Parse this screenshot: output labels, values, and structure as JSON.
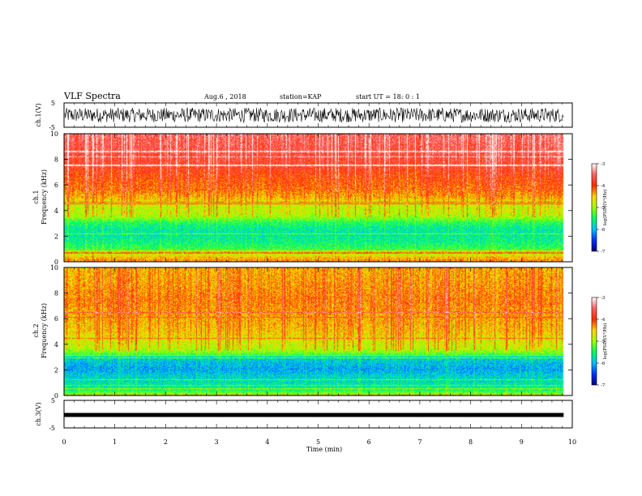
{
  "header": {
    "title": "VLF Spectra",
    "date": "Aug.6 , 2018",
    "station": "station=KAP",
    "start": "start UT = 18: 0 : 1"
  },
  "colorbar": {
    "label": "log(PSD)(V²/Hz)",
    "ticks": [
      "-3",
      "-4",
      "-5",
      "-6",
      "-7"
    ],
    "colors": [
      "#ffffff",
      "#ff6060",
      "#ff2a00",
      "#ffd400",
      "#a0ff00",
      "#00ff60",
      "#00c0ff",
      "#0030ff",
      "#000080"
    ]
  },
  "chart_data": [
    {
      "type": "line",
      "name": "ch1-waveform",
      "ylabel": "ch.1(V)",
      "ylim": [
        -5,
        5
      ],
      "yticks": [
        "5",
        "-5"
      ],
      "xlim": [
        0,
        10
      ],
      "xmax_data": 9.83,
      "amplitude_range": [
        -3,
        3
      ],
      "color": "#000000"
    },
    {
      "type": "heatmap",
      "name": "ch1-spectrogram",
      "ylabel_channel": "ch.1",
      "ylabel": "Frequency (kHz)",
      "ylim": [
        0,
        10
      ],
      "yticks": [
        "0",
        "2",
        "4",
        "6",
        "8",
        "10"
      ],
      "xlim": [
        0,
        10
      ],
      "xmax_data": 9.83,
      "zlim": [
        -7,
        -3
      ],
      "profile": {
        "freq_khz": [
          0,
          0.4,
          0.8,
          1.0,
          1.5,
          2.0,
          2.5,
          3.0,
          3.4,
          3.8,
          4.2,
          4.6,
          5.0,
          5.5,
          6.0,
          7.0,
          8.0,
          9.0,
          10.0
        ],
        "log_psd": [
          -4.3,
          -4.6,
          -5.2,
          -5.4,
          -5.6,
          -5.7,
          -5.7,
          -5.5,
          -5.1,
          -4.9,
          -4.9,
          -4.8,
          -4.5,
          -4.3,
          -4.2,
          -4.0,
          -3.8,
          -3.7,
          -3.6
        ]
      }
    },
    {
      "type": "heatmap",
      "name": "ch2-spectrogram",
      "ylabel_channel": "ch.2",
      "ylabel": "Frequency (kHz)",
      "ylim": [
        0,
        10
      ],
      "yticks": [
        "0",
        "2",
        "4",
        "6",
        "8",
        "10"
      ],
      "xlim": [
        0,
        10
      ],
      "xmax_data": 9.83,
      "zlim": [
        -7,
        -3
      ],
      "profile": {
        "freq_khz": [
          0,
          0.3,
          0.6,
          1.0,
          1.5,
          2.0,
          2.5,
          3.0,
          3.3,
          3.7,
          4.2,
          4.8,
          5.5,
          6.5,
          7.5,
          8.5,
          10.0
        ],
        "log_psd": [
          -5.0,
          -5.4,
          -5.7,
          -5.8,
          -5.9,
          -6.1,
          -6.0,
          -5.8,
          -5.2,
          -4.9,
          -4.8,
          -4.6,
          -4.5,
          -4.4,
          -4.3,
          -4.4,
          -4.5
        ]
      }
    },
    {
      "type": "line",
      "name": "ch3-waveform",
      "ylabel": "ch.3(V)",
      "ylim": [
        -5,
        5
      ],
      "yticks": [
        "5",
        "-5"
      ],
      "xlim": [
        0,
        10
      ],
      "xmax_data": 9.83,
      "constant_value": 0,
      "color": "#000000"
    }
  ],
  "xaxis": {
    "label": "Time (min)",
    "ticks": [
      "0",
      "1",
      "2",
      "3",
      "4",
      "5",
      "6",
      "7",
      "8",
      "9",
      "10"
    ]
  }
}
